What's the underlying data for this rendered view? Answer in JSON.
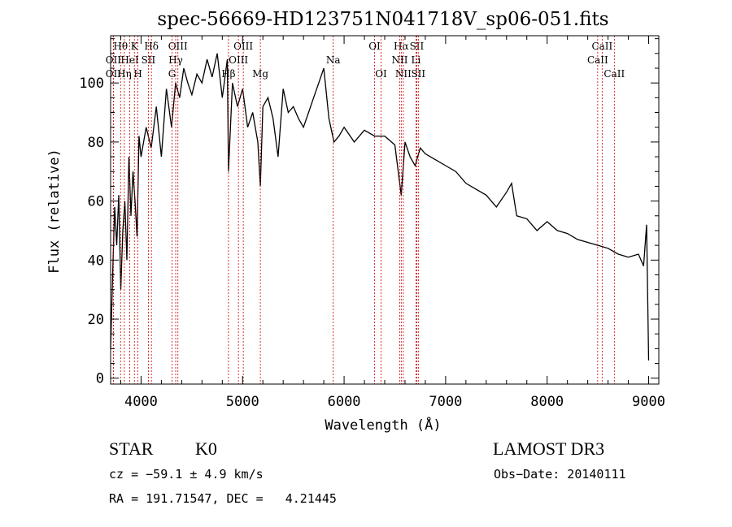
{
  "chart_data": {
    "type": "line",
    "title": "spec-56669-HD123751N041718V_sp06-051.fits",
    "xlabel": "Wavelength (Å)",
    "ylabel": "Flux (relative)",
    "xlim": [
      3700,
      9100
    ],
    "ylim": [
      -2,
      116
    ],
    "xticks": [
      "4000",
      "5000",
      "6000",
      "7000",
      "8000",
      "9000"
    ],
    "yticks": [
      "0",
      "20",
      "40",
      "60",
      "80",
      "100"
    ],
    "series": [
      {
        "name": "flux",
        "x": [
          3700,
          3720,
          3740,
          3760,
          3780,
          3800,
          3820,
          3840,
          3860,
          3880,
          3900,
          3920,
          3940,
          3960,
          3980,
          4000,
          4050,
          4100,
          4150,
          4200,
          4250,
          4300,
          4340,
          4380,
          4420,
          4460,
          4500,
          4550,
          4600,
          4650,
          4700,
          4750,
          4800,
          4850,
          4861,
          4900,
          4950,
          5000,
          5050,
          5100,
          5150,
          5175,
          5200,
          5250,
          5300,
          5350,
          5400,
          5450,
          5500,
          5550,
          5600,
          5650,
          5700,
          5750,
          5800,
          5850,
          5900,
          5950,
          6000,
          6100,
          6200,
          6300,
          6400,
          6500,
          6563,
          6600,
          6650,
          6700,
          6750,
          6800,
          6900,
          7000,
          7100,
          7200,
          7300,
          7400,
          7500,
          7600,
          7650,
          7700,
          7800,
          7900,
          8000,
          8100,
          8200,
          8300,
          8400,
          8500,
          8600,
          8700,
          8800,
          8900,
          8950,
          8980,
          9000
        ],
        "y": [
          10,
          35,
          58,
          45,
          62,
          30,
          50,
          60,
          40,
          75,
          55,
          70,
          60,
          48,
          82,
          75,
          85,
          78,
          92,
          75,
          98,
          85,
          100,
          95,
          105,
          100,
          96,
          103,
          100,
          108,
          102,
          110,
          95,
          108,
          70,
          100,
          92,
          98,
          85,
          90,
          80,
          65,
          92,
          95,
          88,
          75,
          98,
          90,
          92,
          88,
          85,
          90,
          95,
          100,
          105,
          88,
          80,
          82,
          85,
          80,
          84,
          82,
          82,
          79,
          62,
          80,
          75,
          72,
          78,
          76,
          74,
          72,
          70,
          66,
          64,
          62,
          58,
          63,
          66,
          55,
          54,
          50,
          53,
          50,
          49,
          47,
          46,
          45,
          44,
          42,
          41,
          42,
          38,
          52,
          6
        ]
      }
    ],
    "lines": [
      {
        "label": "Hθ",
        "x": 3798,
        "row": 1
      },
      {
        "label": "OII",
        "x": 3727,
        "row": 2
      },
      {
        "label": "OII",
        "x": 3727,
        "row": 3
      },
      {
        "label": "HeI",
        "x": 3889,
        "row": 2
      },
      {
        "label": "Hη",
        "x": 3835,
        "row": 3
      },
      {
        "label": "K",
        "x": 3934,
        "row": 1
      },
      {
        "label": "SII",
        "x": 4072,
        "row": 2
      },
      {
        "label": "H",
        "x": 3969,
        "row": 3
      },
      {
        "label": "Hδ",
        "x": 4102,
        "row": 1
      },
      {
        "label": "OIII",
        "x": 4363,
        "row": 1
      },
      {
        "label": "Hγ",
        "x": 4341,
        "row": 2
      },
      {
        "label": "G",
        "x": 4305,
        "row": 3
      },
      {
        "label": "OIII",
        "x": 5007,
        "row": 1
      },
      {
        "label": "OIII",
        "x": 4959,
        "row": 2
      },
      {
        "label": "Hβ",
        "x": 4861,
        "row": 3
      },
      {
        "label": "Mg",
        "x": 5175,
        "row": 3
      },
      {
        "label": "Na",
        "x": 5893,
        "row": 2
      },
      {
        "label": "OI",
        "x": 6300,
        "row": 1
      },
      {
        "label": "OI",
        "x": 6364,
        "row": 3
      },
      {
        "label": "Hα",
        "x": 6563,
        "row": 1
      },
      {
        "label": "SII",
        "x": 6716,
        "row": 1
      },
      {
        "label": "NII",
        "x": 6548,
        "row": 2
      },
      {
        "label": "Li",
        "x": 6708,
        "row": 2
      },
      {
        "label": "NII",
        "x": 6583,
        "row": 3
      },
      {
        "label": "SII",
        "x": 6731,
        "row": 3
      },
      {
        "label": "CaII",
        "x": 8542,
        "row": 1
      },
      {
        "label": "CaII",
        "x": 8498,
        "row": 2
      },
      {
        "label": "CaII",
        "x": 8662,
        "row": 3
      }
    ]
  },
  "info": {
    "class": "STAR",
    "subclass": "K0",
    "survey": "LAMOST DR3",
    "cz": "cz = −59.1 ± 4.9 km/s",
    "obs_date": "Obs−Date: 20140111",
    "coords": "RA = 191.71547, DEC =   4.21445"
  }
}
